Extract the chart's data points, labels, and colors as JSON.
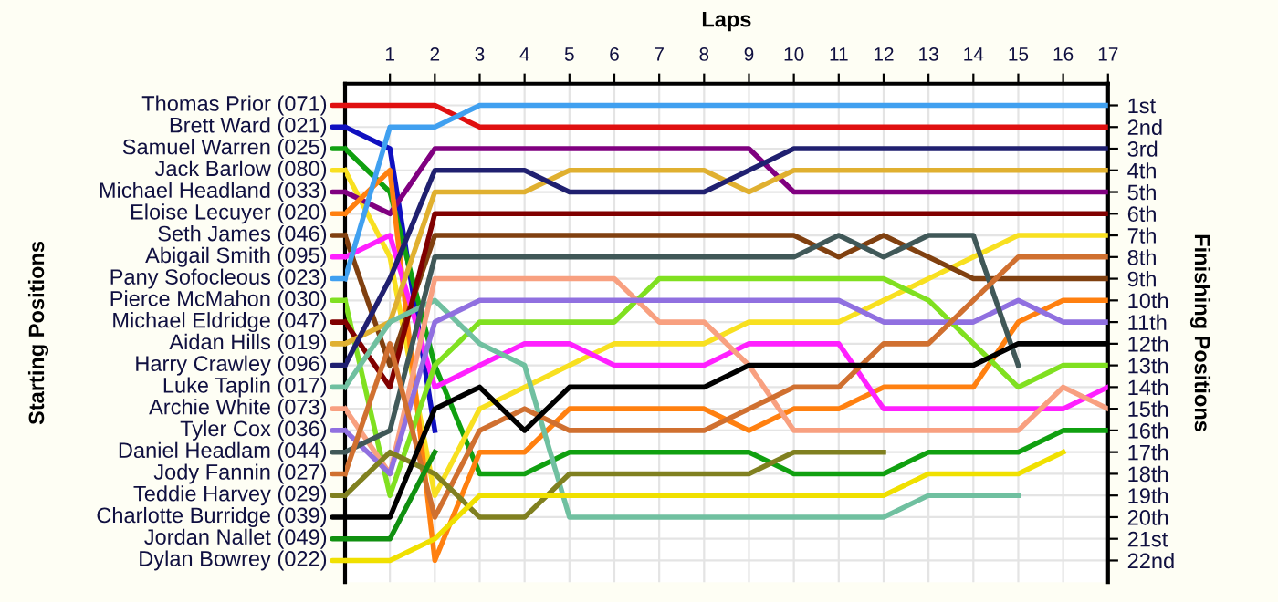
{
  "chart_data": {
    "type": "line",
    "xlabel": "Laps",
    "ylabel": "Finishing Positions",
    "xlim": [
      0,
      17
    ],
    "xticks": [
      1,
      2,
      3,
      4,
      5,
      6,
      7,
      8,
      9,
      10,
      11,
      12,
      13,
      14,
      15,
      16,
      17
    ],
    "ylim": [
      23,
      0
    ],
    "yticks": [
      {
        "value": 1,
        "label": "1st"
      },
      {
        "value": 2,
        "label": "2nd"
      },
      {
        "value": 3,
        "label": "3rd"
      },
      {
        "value": 4,
        "label": "4th"
      },
      {
        "value": 5,
        "label": "5th"
      },
      {
        "value": 6,
        "label": "6th"
      },
      {
        "value": 7,
        "label": "7th"
      },
      {
        "value": 8,
        "label": "8th"
      },
      {
        "value": 9,
        "label": "9th"
      },
      {
        "value": 10,
        "label": "10th"
      },
      {
        "value": 11,
        "label": "11th"
      },
      {
        "value": 12,
        "label": "12th"
      },
      {
        "value": 13,
        "label": "13th"
      },
      {
        "value": 14,
        "label": "14th"
      },
      {
        "value": 15,
        "label": "15th"
      },
      {
        "value": 16,
        "label": "16th"
      },
      {
        "value": 17,
        "label": "17th"
      },
      {
        "value": 18,
        "label": "18th"
      },
      {
        "value": 19,
        "label": "19th"
      },
      {
        "value": 20,
        "label": "20th"
      },
      {
        "value": 21,
        "label": "21st"
      },
      {
        "value": 22,
        "label": "22nd"
      }
    ],
    "annotations": [
      "Starting Positions"
    ],
    "grid": true,
    "legend": "left",
    "series": [
      {
        "name": "Thomas Prior (071)",
        "color": "#e01010",
        "x": [
          0,
          1,
          2,
          3,
          4,
          5,
          6,
          7,
          8,
          9,
          10,
          11,
          12,
          13,
          14,
          15,
          16,
          17
        ],
        "values": [
          1,
          1,
          1,
          2,
          2,
          2,
          2,
          2,
          2,
          2,
          2,
          2,
          2,
          2,
          2,
          2,
          2,
          2
        ]
      },
      {
        "name": "Brett Ward (021)",
        "color": "#1010c0",
        "x": [
          0,
          1,
          2
        ],
        "values": [
          2,
          3,
          16
        ]
      },
      {
        "name": "Samuel Warren (025)",
        "color": "#10a010",
        "x": [
          0,
          1,
          2,
          3,
          4,
          5,
          6,
          7,
          8,
          9,
          10,
          11,
          12,
          13,
          14,
          15,
          16,
          17
        ],
        "values": [
          3,
          5,
          13,
          18,
          18,
          17,
          17,
          17,
          17,
          17,
          18,
          18,
          18,
          17,
          17,
          17,
          16,
          16
        ]
      },
      {
        "name": "Jack Barlow (080)",
        "color": "#f8e020",
        "x": [
          0,
          1,
          2,
          3,
          4,
          5,
          6,
          7,
          8,
          9,
          10,
          11,
          12,
          13,
          14,
          15,
          16,
          17
        ],
        "values": [
          4,
          8,
          19,
          15,
          14,
          13,
          12,
          12,
          12,
          11,
          11,
          11,
          10,
          9,
          8,
          7,
          7,
          7
        ]
      },
      {
        "name": "Michael Headland (033)",
        "color": "#800080",
        "x": [
          0,
          1,
          2,
          3,
          4,
          5,
          6,
          7,
          8,
          9,
          10,
          11,
          12,
          13,
          14,
          15,
          16,
          17
        ],
        "values": [
          5,
          6,
          3,
          3,
          3,
          3,
          3,
          3,
          3,
          3,
          5,
          5,
          5,
          5,
          5,
          5,
          5,
          5
        ]
      },
      {
        "name": "Eloise Lecuyer (020)",
        "color": "#ff8010",
        "x": [
          0,
          1,
          2,
          3,
          4,
          5,
          6,
          7,
          8,
          9,
          10,
          11,
          12,
          13,
          14,
          15,
          16,
          17
        ],
        "values": [
          6,
          4,
          22,
          17,
          17,
          15,
          15,
          15,
          15,
          16,
          15,
          15,
          14,
          14,
          14,
          11,
          10,
          10
        ]
      },
      {
        "name": "Seth James (046)",
        "color": "#804010",
        "x": [
          0,
          1,
          2,
          3,
          4,
          5,
          6,
          7,
          8,
          9,
          10,
          11,
          12,
          13,
          14,
          15,
          16,
          17
        ],
        "values": [
          7,
          13,
          7,
          7,
          7,
          7,
          7,
          7,
          7,
          7,
          7,
          8,
          7,
          8,
          9,
          9,
          9,
          9
        ]
      },
      {
        "name": "Abigail Smith (095)",
        "color": "#ff20ff",
        "x": [
          0,
          1,
          2,
          3,
          4,
          5,
          6,
          7,
          8,
          9,
          10,
          11,
          12,
          13,
          14,
          15,
          16,
          17
        ],
        "values": [
          8,
          7,
          14,
          13,
          12,
          12,
          13,
          13,
          13,
          12,
          12,
          12,
          15,
          15,
          15,
          15,
          15,
          14
        ]
      },
      {
        "name": "Pany Sofocleous (023)",
        "color": "#40a0f0",
        "x": [
          0,
          1,
          2,
          3,
          4,
          5,
          6,
          7,
          8,
          9,
          10,
          11,
          12,
          13,
          14,
          15,
          16,
          17
        ],
        "values": [
          9,
          2,
          2,
          1,
          1,
          1,
          1,
          1,
          1,
          1,
          1,
          1,
          1,
          1,
          1,
          1,
          1,
          1
        ]
      },
      {
        "name": "Pierce McMahon (030)",
        "color": "#80e020",
        "x": [
          0,
          1,
          2,
          3,
          4,
          5,
          6,
          7,
          8,
          9,
          10,
          11,
          12,
          13,
          14,
          15,
          16,
          17
        ],
        "values": [
          10,
          19,
          13,
          11,
          11,
          11,
          11,
          9,
          9,
          9,
          9,
          9,
          9,
          10,
          12,
          14,
          13,
          13
        ]
      },
      {
        "name": "Michael Eldridge (047)",
        "color": "#800000",
        "x": [
          0,
          1,
          2,
          3,
          4,
          5,
          6,
          7,
          8,
          9,
          10,
          11,
          12,
          13,
          14,
          15,
          16,
          17
        ],
        "values": [
          11,
          14,
          6,
          6,
          6,
          6,
          6,
          6,
          6,
          6,
          6,
          6,
          6,
          6,
          6,
          6,
          6,
          6
        ]
      },
      {
        "name": "Aidan Hills (019)",
        "color": "#e0b030",
        "x": [
          0,
          1,
          2,
          3,
          4,
          5,
          6,
          7,
          8,
          9,
          10,
          11,
          12,
          13,
          14,
          15,
          16,
          17
        ],
        "values": [
          12,
          11,
          5,
          5,
          5,
          4,
          4,
          4,
          4,
          5,
          4,
          4,
          4,
          4,
          4,
          4,
          4,
          4
        ]
      },
      {
        "name": "Harry Crawley (096)",
        "color": "#202070",
        "x": [
          0,
          1,
          2,
          3,
          4,
          5,
          6,
          7,
          8,
          9,
          10,
          11,
          12,
          13,
          14,
          15,
          16,
          17
        ],
        "values": [
          13,
          9,
          4,
          4,
          4,
          5,
          5,
          5,
          5,
          4,
          3,
          3,
          3,
          3,
          3,
          3,
          3,
          3
        ]
      },
      {
        "name": "Luke Taplin (017)",
        "color": "#70c0a0",
        "x": [
          0,
          1,
          2,
          3,
          4,
          5,
          6,
          7,
          8,
          9,
          10,
          11,
          12,
          13,
          14,
          15
        ],
        "values": [
          14,
          11,
          10,
          12,
          13,
          20,
          20,
          20,
          20,
          20,
          20,
          20,
          20,
          19,
          19,
          19
        ]
      },
      {
        "name": "Archie White (073)",
        "color": "#f8a080",
        "x": [
          0,
          1,
          2,
          3,
          4,
          5,
          6,
          7,
          8,
          9,
          10,
          11,
          12,
          13,
          14,
          15,
          16,
          17
        ],
        "values": [
          15,
          18,
          9,
          9,
          9,
          9,
          9,
          11,
          11,
          13,
          16,
          16,
          16,
          16,
          16,
          16,
          14,
          15
        ]
      },
      {
        "name": "Tyler Cox (036)",
        "color": "#9070e0",
        "x": [
          0,
          1,
          2,
          3,
          4,
          5,
          6,
          7,
          8,
          9,
          10,
          11,
          12,
          13,
          14,
          15,
          16,
          17
        ],
        "values": [
          16,
          18,
          11,
          10,
          10,
          10,
          10,
          10,
          10,
          10,
          10,
          10,
          11,
          11,
          11,
          10,
          11,
          11
        ]
      },
      {
        "name": "Daniel Headlam (044)",
        "color": "#405858",
        "x": [
          0,
          1,
          2,
          3,
          4,
          5,
          6,
          7,
          8,
          9,
          10,
          11,
          12,
          13,
          14,
          15
        ],
        "values": [
          17,
          16,
          8,
          8,
          8,
          8,
          8,
          8,
          8,
          8,
          8,
          7,
          8,
          7,
          7,
          13
        ]
      },
      {
        "name": "Jody Fannin (027)",
        "color": "#d07030",
        "x": [
          0,
          1,
          2,
          3,
          4,
          5,
          6,
          7,
          8,
          9,
          10,
          11,
          12,
          13,
          14,
          15,
          16,
          17
        ],
        "values": [
          18,
          12,
          20,
          16,
          15,
          16,
          16,
          16,
          16,
          15,
          14,
          14,
          12,
          12,
          10,
          8,
          8,
          8
        ]
      },
      {
        "name": "Teddie Harvey (029)",
        "color": "#808020",
        "x": [
          0,
          1,
          2,
          3,
          4,
          5,
          6,
          7,
          8,
          9,
          10,
          11,
          12
        ],
        "values": [
          19,
          17,
          18,
          20,
          20,
          18,
          18,
          18,
          18,
          18,
          17,
          17,
          17
        ]
      },
      {
        "name": "Charlotte Burridge (039)",
        "color": "#000000",
        "x": [
          0,
          1,
          2,
          3,
          4,
          5,
          6,
          7,
          8,
          9,
          10,
          11,
          12,
          13,
          14,
          15,
          16,
          17
        ],
        "values": [
          20,
          20,
          15,
          14,
          16,
          14,
          14,
          14,
          14,
          13,
          13,
          13,
          13,
          13,
          13,
          12,
          12,
          12
        ]
      },
      {
        "name": "Jordan Nallet (049)",
        "color": "#109010",
        "x": [
          0,
          1,
          2
        ],
        "values": [
          21,
          21,
          17
        ]
      },
      {
        "name": "Dylan Bowrey (022)",
        "color": "#f0e000",
        "x": [
          0,
          1,
          2,
          3,
          4,
          5,
          6,
          7,
          8,
          9,
          10,
          11,
          12,
          13,
          14,
          15,
          16
        ],
        "values": [
          22,
          22,
          21,
          19,
          19,
          19,
          19,
          19,
          19,
          19,
          19,
          19,
          19,
          18,
          18,
          18,
          17
        ]
      }
    ]
  }
}
